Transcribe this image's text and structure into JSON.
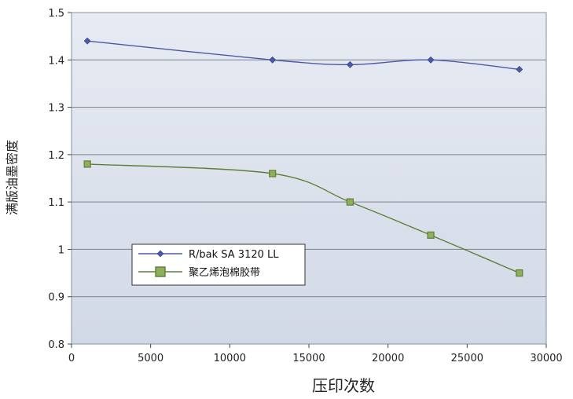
{
  "chart_data": {
    "type": "line",
    "title": "",
    "xlabel": "压印次数",
    "ylabel": "满版油墨密度",
    "xlim": [
      0,
      30000
    ],
    "ylim": [
      0.8,
      1.5
    ],
    "xticks": [
      0,
      5000,
      10000,
      15000,
      20000,
      25000,
      30000
    ],
    "xtick_labels": [
      "0",
      "5000",
      "10000",
      "15000",
      "20000",
      "25000",
      "30000"
    ],
    "yticks": [
      0.8,
      0.9,
      1.0,
      1.1,
      1.2,
      1.3,
      1.4,
      1.5
    ],
    "ytick_labels": [
      "0.8",
      "0.9",
      "1",
      "1.1",
      "1.2",
      "1.3",
      "1.4",
      "1.5"
    ],
    "grid": "horizontal",
    "legend_position": "lower-left",
    "series": [
      {
        "name": "R/bak SA 3120 LL",
        "color": "#4a5aa8",
        "marker": "diamond",
        "x": [
          1000,
          12700,
          17600,
          22700,
          28300
        ],
        "y": [
          1.44,
          1.4,
          1.39,
          1.4,
          1.38
        ]
      },
      {
        "name": "聚乙烯泡棉胶带",
        "color": "#5e7e3a",
        "marker": "square",
        "x": [
          1000,
          12700,
          17600,
          22700,
          28300
        ],
        "y": [
          1.18,
          1.16,
          1.1,
          1.03,
          0.95
        ]
      }
    ]
  }
}
